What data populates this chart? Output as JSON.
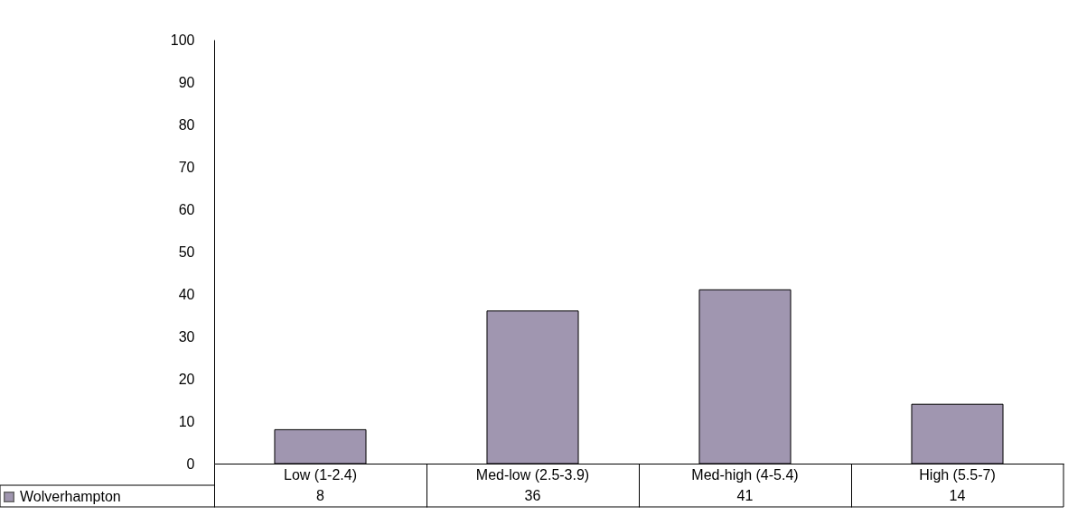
{
  "chart_data": {
    "type": "bar",
    "categories": [
      "Low (1-2.4)",
      "Med-low (2.5-3.9)",
      "Med-high (4-5.4)",
      "High (5.5-7)"
    ],
    "series": [
      {
        "name": "Wolverhampton",
        "color": "#a096b0",
        "values": [
          8,
          36,
          41,
          14
        ]
      }
    ],
    "ylim": [
      0,
      100
    ],
    "yticks": [
      0,
      10,
      20,
      30,
      40,
      50,
      60,
      70,
      80,
      90,
      100
    ],
    "data_labels": true,
    "legend": "bottom left"
  }
}
